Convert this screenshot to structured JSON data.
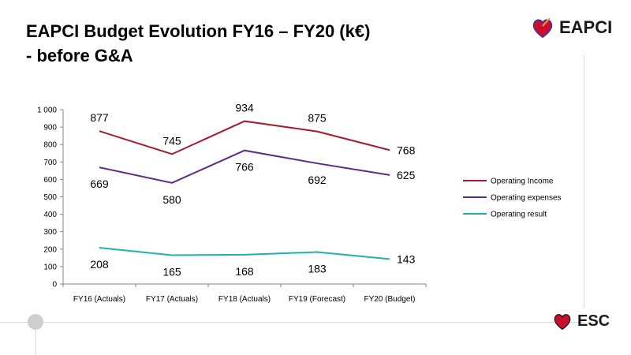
{
  "slide": {
    "title_line1": "EAPCI Budget Evolution FY16 – FY20 (k€)",
    "title_line2": "- before G&A",
    "logo_top": "EAPCI",
    "logo_bottom": "ESC"
  },
  "chart_data": {
    "type": "line",
    "categories": [
      "FY16 (Actuals)",
      "FY17 (Actuals)",
      "FY18 (Actuals)",
      "FY19 (Forecast)",
      "FY20 (Budget)"
    ],
    "ylim": [
      0,
      1000
    ],
    "yticks": [
      0,
      100,
      200,
      300,
      400,
      500,
      600,
      700,
      800,
      900,
      1000
    ],
    "ytick_labels": [
      "0",
      "100",
      "200",
      "300",
      "400",
      "500",
      "600",
      "700",
      "800",
      "900",
      "1 000"
    ],
    "grid": false,
    "legend_position": "right",
    "series": [
      {
        "name": "Operating Income",
        "color": "#a6192e",
        "values": [
          877,
          745,
          934,
          875,
          768
        ],
        "label_side": [
          "above",
          "above",
          "above",
          "above",
          "right"
        ]
      },
      {
        "name": "Operating expenses",
        "color": "#5b2c83",
        "values": [
          669,
          580,
          766,
          692,
          625
        ],
        "label_side": [
          "below",
          "below",
          "below",
          "below",
          "right"
        ]
      },
      {
        "name": "Operating result",
        "color": "#1fb1ac",
        "values": [
          208,
          165,
          168,
          183,
          143
        ],
        "label_side": [
          "below",
          "below",
          "below",
          "below",
          "right"
        ]
      }
    ]
  }
}
